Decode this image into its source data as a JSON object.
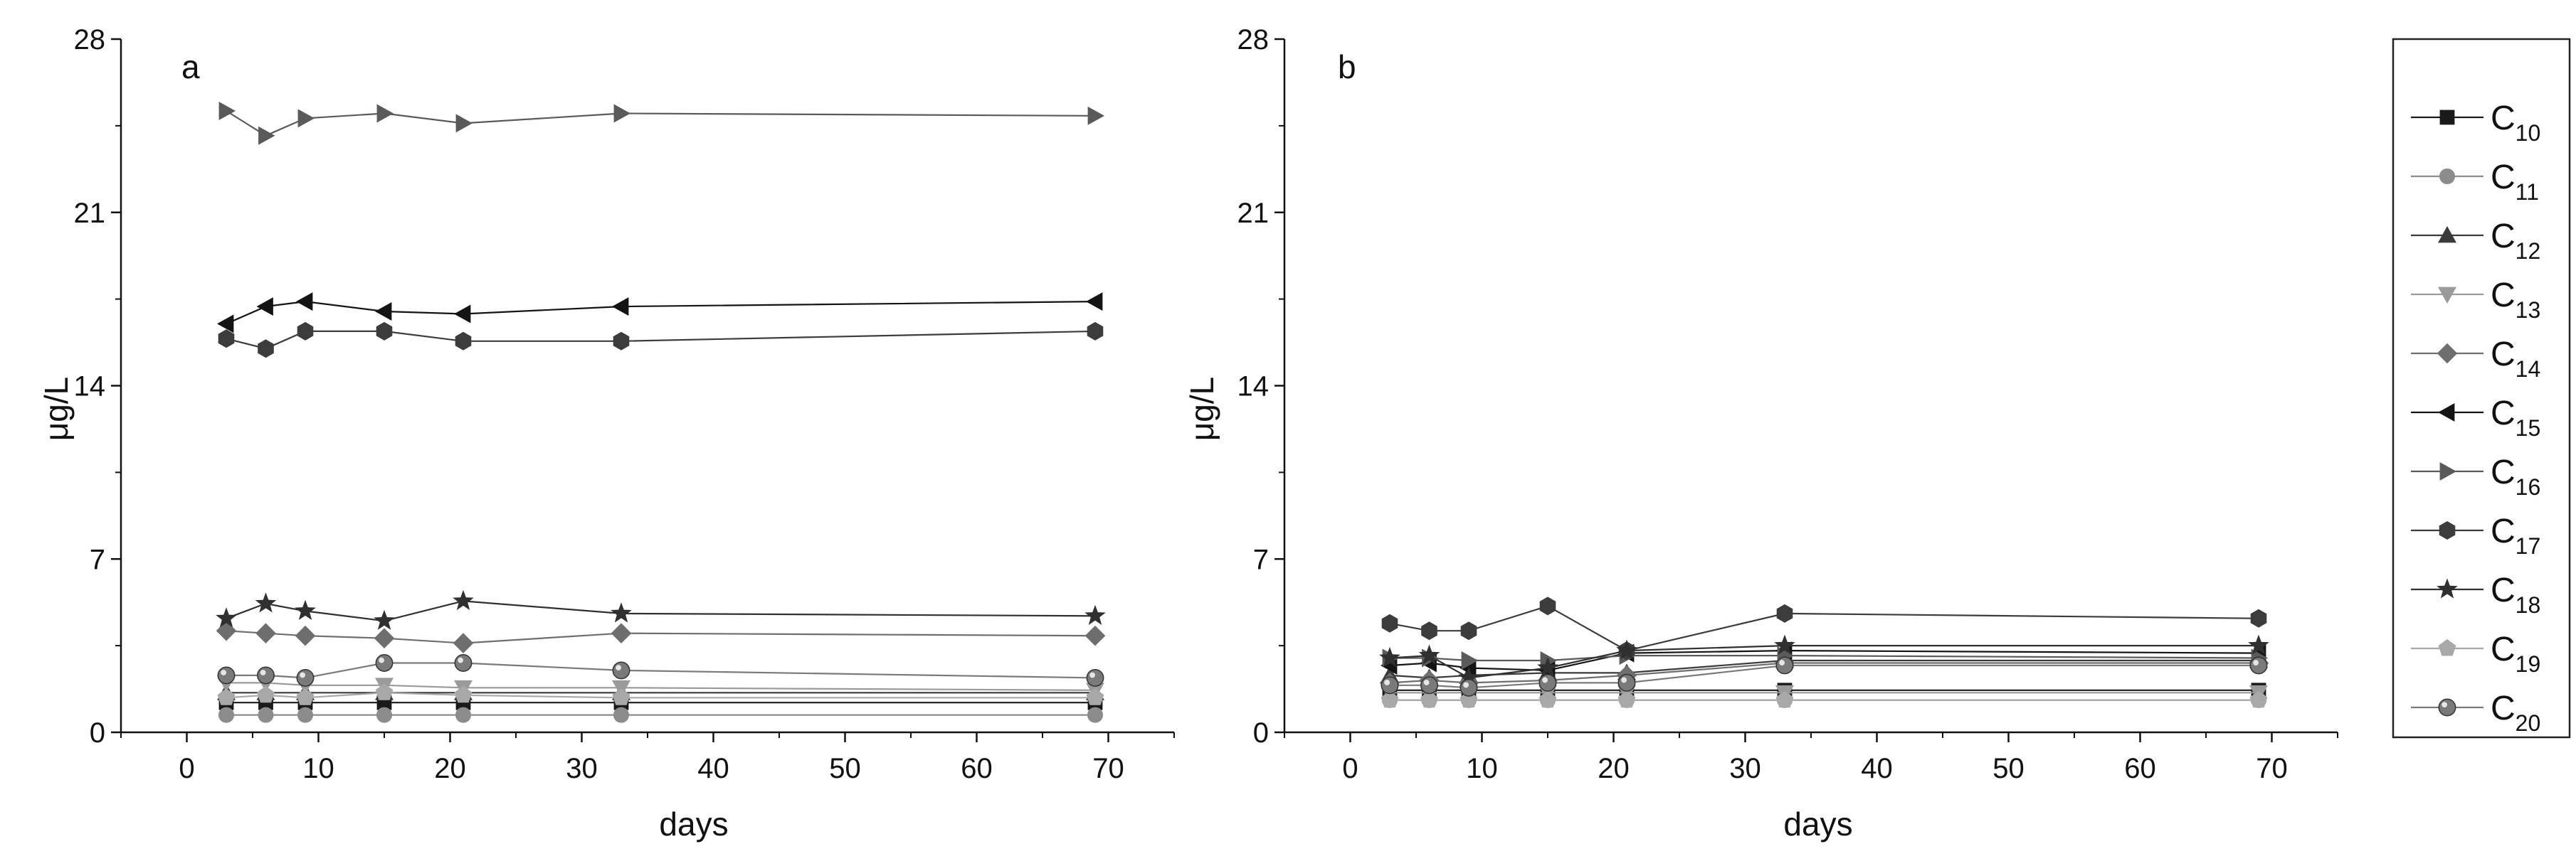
{
  "chart_data": [
    {
      "type": "line",
      "panel_label": "a",
      "xlabel": "days",
      "ylabel": "μg/L",
      "xlim": [
        -5,
        75
      ],
      "ylim": [
        0,
        28
      ],
      "xticks": [
        0,
        10,
        20,
        30,
        40,
        50,
        60,
        70
      ],
      "yticks": [
        0,
        7,
        14,
        21,
        28
      ],
      "x": [
        3,
        6,
        9,
        15,
        21,
        33,
        69
      ],
      "series": [
        {
          "name": "C10",
          "marker": "square",
          "color": "#1a1a1a",
          "values": [
            1.2,
            1.2,
            1.2,
            1.2,
            1.2,
            1.2,
            1.2
          ]
        },
        {
          "name": "C11",
          "marker": "circle",
          "color": "#8c8c8c",
          "values": [
            0.7,
            0.7,
            0.7,
            0.7,
            0.7,
            0.7,
            0.7
          ]
        },
        {
          "name": "C12",
          "marker": "triangle-up",
          "color": "#3a3a3a",
          "values": [
            1.6,
            1.6,
            1.6,
            1.6,
            1.6,
            1.6,
            1.6
          ]
        },
        {
          "name": "C13",
          "marker": "triangle-down",
          "color": "#9a9a9a",
          "values": [
            2.0,
            2.0,
            1.9,
            1.9,
            1.8,
            1.8,
            1.7
          ]
        },
        {
          "name": "C14",
          "marker": "diamond",
          "color": "#6e6e6e",
          "values": [
            4.1,
            4.0,
            3.9,
            3.8,
            3.6,
            4.0,
            3.9
          ]
        },
        {
          "name": "C15",
          "marker": "triangle-left",
          "color": "#141414",
          "values": [
            16.5,
            17.2,
            17.4,
            17.0,
            16.9,
            17.2,
            17.4
          ]
        },
        {
          "name": "C16",
          "marker": "triangle-right",
          "color": "#5a5a5a",
          "values": [
            25.1,
            24.1,
            24.8,
            25.0,
            24.6,
            25.0,
            24.9
          ]
        },
        {
          "name": "C17",
          "marker": "hexagon",
          "color": "#3c3c3c",
          "values": [
            15.9,
            15.5,
            16.2,
            16.2,
            15.8,
            15.8,
            16.2
          ]
        },
        {
          "name": "C18",
          "marker": "star",
          "color": "#303030",
          "values": [
            4.6,
            5.2,
            4.9,
            4.5,
            5.3,
            4.8,
            4.7
          ]
        },
        {
          "name": "C19",
          "marker": "pentagon",
          "color": "#a8a8a8",
          "values": [
            1.4,
            1.5,
            1.4,
            1.6,
            1.5,
            1.4,
            1.4
          ]
        },
        {
          "name": "C20",
          "marker": "sphere",
          "color": "#7a7a7a",
          "values": [
            2.3,
            2.3,
            2.2,
            2.8,
            2.8,
            2.5,
            2.2
          ]
        }
      ]
    },
    {
      "type": "line",
      "panel_label": "b",
      "xlabel": "days",
      "ylabel": "μg/L",
      "xlim": [
        -5,
        75
      ],
      "ylim": [
        0,
        28
      ],
      "xticks": [
        0,
        10,
        20,
        30,
        40,
        50,
        60,
        70
      ],
      "yticks": [
        0,
        7,
        14,
        21,
        28
      ],
      "x": [
        3,
        6,
        9,
        15,
        21,
        33,
        69
      ],
      "series": [
        {
          "name": "C10",
          "marker": "square",
          "color": "#1a1a1a",
          "values": [
            1.7,
            1.7,
            1.7,
            1.7,
            1.7,
            1.7,
            1.7
          ]
        },
        {
          "name": "C11",
          "marker": "circle",
          "color": "#8c8c8c",
          "values": [
            1.3,
            1.3,
            1.3,
            1.3,
            1.3,
            1.3,
            1.3
          ]
        },
        {
          "name": "C12",
          "marker": "triangle-up",
          "color": "#3a3a3a",
          "values": [
            2.3,
            2.2,
            2.3,
            2.4,
            2.4,
            2.9,
            2.9
          ]
        },
        {
          "name": "C13",
          "marker": "triangle-down",
          "color": "#9a9a9a",
          "values": [
            1.6,
            1.6,
            1.6,
            1.6,
            1.6,
            1.6,
            1.6
          ]
        },
        {
          "name": "C14",
          "marker": "diamond",
          "color": "#6e6e6e",
          "values": [
            2.0,
            2.1,
            2.0,
            2.1,
            2.3,
            2.8,
            2.8
          ]
        },
        {
          "name": "C15",
          "marker": "triangle-left",
          "color": "#141414",
          "values": [
            2.7,
            2.8,
            2.6,
            2.5,
            3.2,
            3.3,
            3.2
          ]
        },
        {
          "name": "C16",
          "marker": "triangle-right",
          "color": "#5a5a5a",
          "values": [
            3.0,
            3.0,
            2.9,
            2.9,
            3.1,
            3.1,
            3.0
          ]
        },
        {
          "name": "C17",
          "marker": "hexagon",
          "color": "#3c3c3c",
          "values": [
            4.4,
            4.1,
            4.1,
            5.1,
            3.3,
            4.8,
            4.6
          ]
        },
        {
          "name": "C18",
          "marker": "star",
          "color": "#303030",
          "values": [
            3.0,
            3.1,
            2.2,
            2.6,
            3.3,
            3.5,
            3.5
          ]
        },
        {
          "name": "C19",
          "marker": "pentagon",
          "color": "#a8a8a8",
          "values": [
            1.3,
            1.3,
            1.3,
            1.3,
            1.3,
            1.3,
            1.3
          ]
        },
        {
          "name": "C20",
          "marker": "sphere",
          "color": "#7a7a7a",
          "values": [
            1.9,
            1.9,
            1.8,
            2.0,
            2.0,
            2.7,
            2.7
          ]
        }
      ]
    }
  ],
  "legend": {
    "placement": "right",
    "items": [
      {
        "base": "C",
        "sub": "10",
        "marker": "square",
        "color": "#1a1a1a"
      },
      {
        "base": "C",
        "sub": "11",
        "marker": "circle",
        "color": "#8c8c8c"
      },
      {
        "base": "C",
        "sub": "12",
        "marker": "triangle-up",
        "color": "#3a3a3a"
      },
      {
        "base": "C",
        "sub": "13",
        "marker": "triangle-down",
        "color": "#9a9a9a"
      },
      {
        "base": "C",
        "sub": "14",
        "marker": "diamond",
        "color": "#6e6e6e"
      },
      {
        "base": "C",
        "sub": "15",
        "marker": "triangle-left",
        "color": "#141414"
      },
      {
        "base": "C",
        "sub": "16",
        "marker": "triangle-right",
        "color": "#5a5a5a"
      },
      {
        "base": "C",
        "sub": "17",
        "marker": "hexagon",
        "color": "#3c3c3c"
      },
      {
        "base": "C",
        "sub": "18",
        "marker": "star",
        "color": "#303030"
      },
      {
        "base": "C",
        "sub": "19",
        "marker": "pentagon",
        "color": "#a8a8a8"
      },
      {
        "base": "C",
        "sub": "20",
        "marker": "sphere",
        "color": "#7a7a7a"
      }
    ]
  }
}
